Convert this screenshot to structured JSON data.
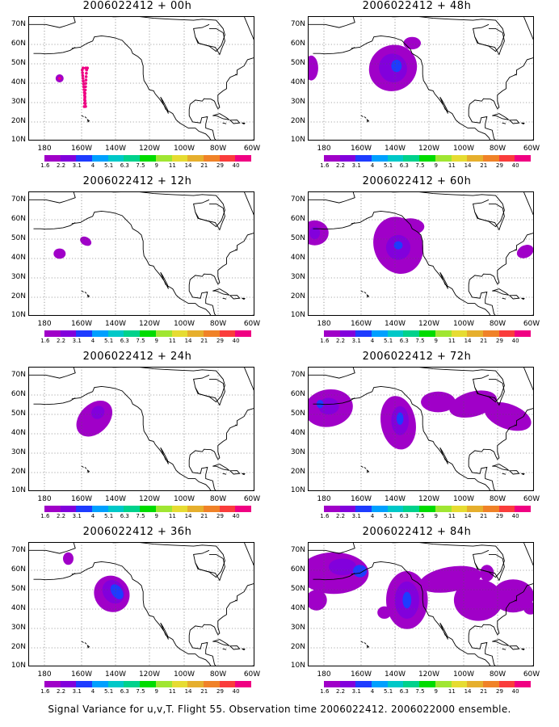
{
  "panels": [
    {
      "title": "2006022412 + 00h"
    },
    {
      "title": "2006022412 + 48h"
    },
    {
      "title": "2006022412 + 12h"
    },
    {
      "title": "2006022412 + 60h"
    },
    {
      "title": "2006022412 + 24h"
    },
    {
      "title": "2006022412 + 72h"
    },
    {
      "title": "2006022412 + 36h"
    },
    {
      "title": "2006022412 + 84h"
    }
  ],
  "lat_labels": [
    "70N",
    "60N",
    "50N",
    "40N",
    "30N",
    "20N",
    "10N"
  ],
  "lon_labels": [
    "180",
    "160W",
    "140W",
    "120W",
    "100W",
    "80W",
    "60W"
  ],
  "colorbar": {
    "labels": [
      "1.6",
      "2.2",
      "3.1",
      "4",
      "5.1",
      "6.3",
      "7.5",
      "9",
      "11",
      "14",
      "21",
      "29",
      "40"
    ],
    "colors": [
      "#a000c8",
      "#8200dc",
      "#1e3cff",
      "#00a0ff",
      "#00c8c8",
      "#00d28c",
      "#00dc00",
      "#a0e632",
      "#e6dc32",
      "#e6af2d",
      "#f08228",
      "#fa3c3c",
      "#f00082"
    ]
  },
  "field_colors": {
    "low": "#a000c8",
    "mid": "#8200dc",
    "high": "#1e3cff",
    "peak": "#00a0ff",
    "dots": "#f00082"
  },
  "footer": "Signal Variance for u,v,T. Flight 55. Observation time 2006022412. 2006022000 ensemble."
}
